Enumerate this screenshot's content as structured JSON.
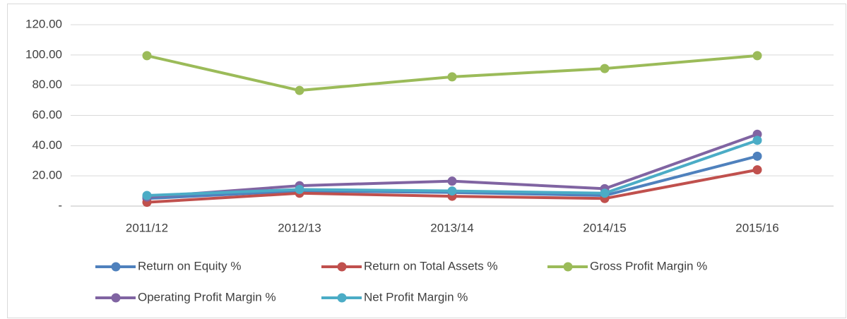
{
  "chart_data": {
    "type": "line",
    "categories": [
      "2011/12",
      "2012/13",
      "2013/14",
      "2014/15",
      "2015/16"
    ],
    "series": [
      {
        "name": "Return on Equity %",
        "color": "#4f81bd",
        "values": [
          5,
          10,
          9,
          7,
          33
        ]
      },
      {
        "name": "Return on Total Assets %",
        "color": "#c0504d",
        "values": [
          2.5,
          8.5,
          6.5,
          5,
          24
        ]
      },
      {
        "name": "Gross Profit Margin %",
        "color": "#9bbb59",
        "values": [
          99.5,
          76.5,
          85.5,
          91,
          99.5
        ]
      },
      {
        "name": "Operating Profit Margin %",
        "color": "#8064a2",
        "values": [
          6,
          13.5,
          16.5,
          11.5,
          47.5
        ]
      },
      {
        "name": "Net Profit Margin %",
        "color": "#4bacc6",
        "values": [
          7,
          11,
          10,
          8.5,
          43.5
        ]
      }
    ],
    "ylim": [
      0,
      120
    ],
    "yticks": [
      {
        "value": 0,
        "label": "-"
      },
      {
        "value": 20,
        "label": "20.00"
      },
      {
        "value": 40,
        "label": "40.00"
      },
      {
        "value": 60,
        "label": "60.00"
      },
      {
        "value": 80,
        "label": "80.00"
      },
      {
        "value": 100,
        "label": "100.00"
      },
      {
        "value": 120,
        "label": "120.00"
      }
    ],
    "grid": true,
    "legend": "bottom"
  }
}
